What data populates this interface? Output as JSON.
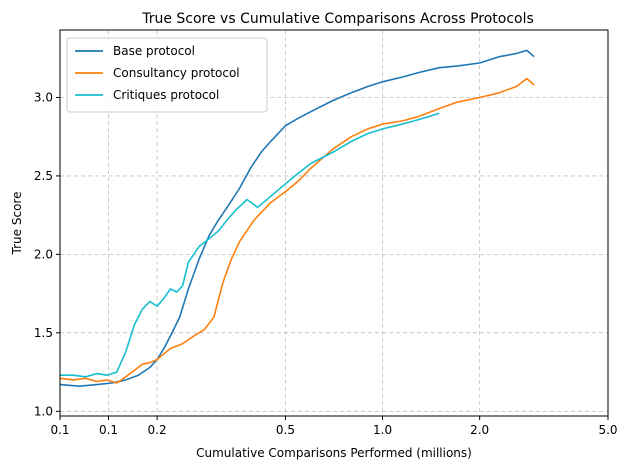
{
  "chart_data": {
    "type": "line",
    "title": "True Score vs Cumulative Comparisons Across Protocols",
    "xlabel": "Cumulative Comparisons Performed (millions)",
    "ylabel": "True Score",
    "xscale": "log",
    "xlim": [
      0.1,
      5.0
    ],
    "ylim": [
      0.97,
      3.43
    ],
    "x_ticks": [
      0.1,
      0.1414,
      0.2,
      0.5,
      1.0,
      2.0,
      5.0
    ],
    "x_tick_labels": [
      "0.1",
      "0.1",
      "0.2",
      "0.5",
      "1.0",
      "2.0",
      "5.0"
    ],
    "y_ticks": [
      1.0,
      1.5,
      2.0,
      2.5,
      3.0
    ],
    "y_tick_labels": [
      "1.0",
      "1.5",
      "2.0",
      "2.5",
      "3.0"
    ],
    "grid": true,
    "legend_position": "top-left",
    "series": [
      {
        "name": "Base protocol",
        "color": "#1f77b4",
        "x": [
          0.1,
          0.115,
          0.13,
          0.145,
          0.16,
          0.175,
          0.19,
          0.2,
          0.21,
          0.22,
          0.235,
          0.25,
          0.27,
          0.29,
          0.31,
          0.33,
          0.36,
          0.39,
          0.42,
          0.45,
          0.5,
          0.55,
          0.6,
          0.7,
          0.8,
          0.9,
          1.0,
          1.15,
          1.3,
          1.5,
          1.7,
          2.0,
          2.3,
          2.6,
          2.8,
          2.95
        ],
        "y": [
          1.17,
          1.16,
          1.17,
          1.18,
          1.2,
          1.23,
          1.28,
          1.33,
          1.4,
          1.48,
          1.6,
          1.78,
          1.97,
          2.12,
          2.22,
          2.3,
          2.42,
          2.55,
          2.65,
          2.72,
          2.82,
          2.87,
          2.91,
          2.98,
          3.03,
          3.07,
          3.1,
          3.13,
          3.16,
          3.19,
          3.2,
          3.22,
          3.26,
          3.28,
          3.3,
          3.26
        ]
      },
      {
        "name": "Consultancy protocol",
        "color": "#ff7f0e",
        "x": [
          0.1,
          0.11,
          0.12,
          0.13,
          0.14,
          0.15,
          0.16,
          0.17,
          0.18,
          0.19,
          0.2,
          0.22,
          0.24,
          0.26,
          0.28,
          0.3,
          0.32,
          0.34,
          0.36,
          0.4,
          0.45,
          0.5,
          0.55,
          0.6,
          0.7,
          0.8,
          0.9,
          1.0,
          1.15,
          1.3,
          1.5,
          1.7,
          2.0,
          2.3,
          2.6,
          2.8,
          2.95
        ],
        "y": [
          1.21,
          1.2,
          1.21,
          1.19,
          1.2,
          1.18,
          1.22,
          1.26,
          1.3,
          1.31,
          1.33,
          1.4,
          1.43,
          1.48,
          1.52,
          1.6,
          1.82,
          1.97,
          2.08,
          2.22,
          2.33,
          2.4,
          2.47,
          2.55,
          2.67,
          2.75,
          2.8,
          2.83,
          2.85,
          2.88,
          2.93,
          2.97,
          3.0,
          3.03,
          3.07,
          3.12,
          3.08
        ]
      },
      {
        "name": "Critiques protocol",
        "color": "#17becf",
        "x": [
          0.1,
          0.11,
          0.12,
          0.13,
          0.14,
          0.15,
          0.16,
          0.17,
          0.18,
          0.19,
          0.2,
          0.21,
          0.22,
          0.23,
          0.24,
          0.25,
          0.27,
          0.29,
          0.31,
          0.33,
          0.35,
          0.38,
          0.41,
          0.45,
          0.5,
          0.55,
          0.6,
          0.7,
          0.8,
          0.9,
          1.0,
          1.1,
          1.25,
          1.4,
          1.5
        ],
        "y": [
          1.23,
          1.23,
          1.22,
          1.24,
          1.23,
          1.25,
          1.38,
          1.55,
          1.65,
          1.7,
          1.67,
          1.72,
          1.78,
          1.76,
          1.8,
          1.95,
          2.05,
          2.1,
          2.15,
          2.22,
          2.28,
          2.35,
          2.3,
          2.37,
          2.45,
          2.52,
          2.58,
          2.65,
          2.72,
          2.77,
          2.8,
          2.82,
          2.85,
          2.88,
          2.9
        ]
      }
    ]
  }
}
